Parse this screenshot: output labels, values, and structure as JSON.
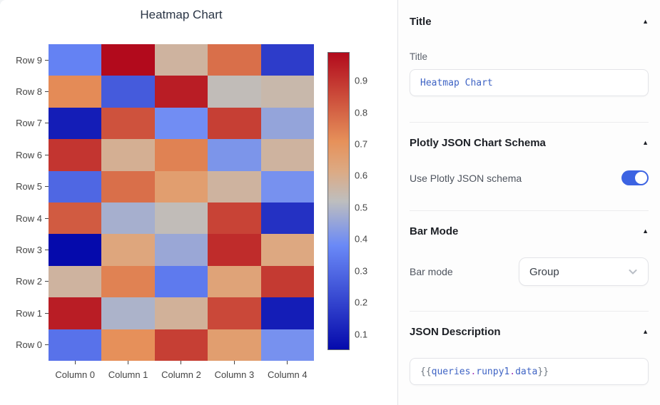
{
  "chart_data": {
    "type": "heatmap",
    "title": "Heatmap Chart",
    "x_labels": [
      "Column 0",
      "Column 1",
      "Column 2",
      "Column 3",
      "Column 4"
    ],
    "y_labels": [
      "Row 0",
      "Row 1",
      "Row 2",
      "Row 3",
      "Row 4",
      "Row 5",
      "Row 6",
      "Row 7",
      "Row 8",
      "Row 9"
    ],
    "z": [
      [
        0.32,
        0.71,
        0.88,
        0.66,
        0.4
      ],
      [
        0.95,
        0.49,
        0.58,
        0.86,
        0.1
      ],
      [
        0.57,
        0.74,
        0.34,
        0.64,
        0.89
      ],
      [
        0.05,
        0.63,
        0.46,
        0.92,
        0.62
      ],
      [
        0.82,
        0.48,
        0.53,
        0.87,
        0.15
      ],
      [
        0.29,
        0.78,
        0.66,
        0.57,
        0.4
      ],
      [
        0.9,
        0.59,
        0.74,
        0.41,
        0.57
      ],
      [
        0.1,
        0.84,
        0.39,
        0.88,
        0.45
      ],
      [
        0.72,
        0.26,
        0.95,
        0.53,
        0.55
      ],
      [
        0.36,
        0.99,
        0.57,
        0.78,
        0.18
      ]
    ],
    "zmin": 0.05,
    "zmax": 0.99,
    "colorbar_ticks": [
      "0.1",
      "0.2",
      "0.3",
      "0.4",
      "0.5",
      "0.6",
      "0.7",
      "0.8",
      "0.9"
    ],
    "colorscale": [
      [
        0.0,
        "#050aac"
      ],
      [
        0.35,
        "#6a89f7"
      ],
      [
        0.5,
        "#bebebe"
      ],
      [
        0.6,
        "#dcaa84"
      ],
      [
        0.7,
        "#e6915a"
      ],
      [
        1.0,
        "#b20a1c"
      ]
    ],
    "legend_position": "right-colorbar",
    "grid": false
  },
  "inspector": {
    "collapse_icon": "▲",
    "sections": {
      "title": {
        "header": "Title",
        "label": "Title",
        "value": "Heatmap Chart"
      },
      "schema": {
        "header": "Plotly JSON Chart Schema",
        "label": "Use Plotly JSON schema",
        "toggle_on": true
      },
      "barmode": {
        "header": "Bar Mode",
        "label": "Bar mode",
        "value": "Group"
      },
      "json": {
        "header": "JSON Description",
        "tokens": [
          {
            "t": "{{",
            "c": "brace"
          },
          {
            "t": "queries",
            "c": "ident"
          },
          {
            "t": ".",
            "c": "dot"
          },
          {
            "t": "runpy1",
            "c": "ident"
          },
          {
            "t": ".",
            "c": "dot"
          },
          {
            "t": "data",
            "c": "ident"
          },
          {
            "t": "}}",
            "c": "brace"
          }
        ]
      }
    }
  },
  "colors": {
    "accent_toggle": "#3c63e2",
    "code_ident": "#3e63c4",
    "code_dot": "#a637b8",
    "code_brace": "#6e7781",
    "axis_text": "#444444",
    "title_text": "#2a3545"
  }
}
